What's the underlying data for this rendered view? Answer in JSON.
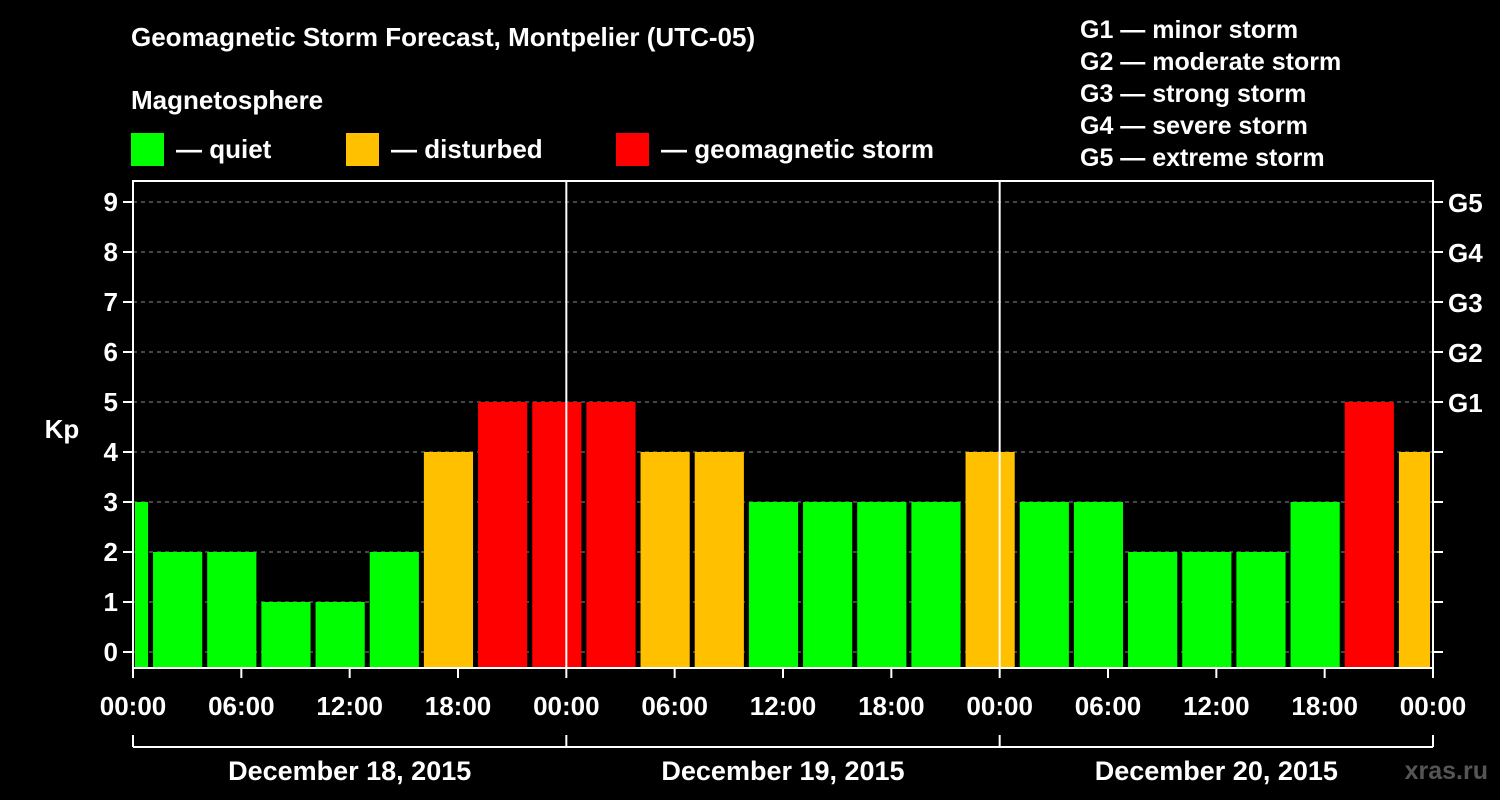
{
  "title": "Geomagnetic Storm Forecast, Montpelier (UTC-05)",
  "subtitle": "Magnetosphere",
  "legend": [
    {
      "label": "— quiet",
      "color": "#00ff00"
    },
    {
      "label": "— disturbed",
      "color": "#ffc000"
    },
    {
      "label": "— geomagnetic storm",
      "color": "#ff0000"
    }
  ],
  "g_scale_legend": [
    "G1 — minor storm",
    "G2 — moderate storm",
    "G3 — strong storm",
    "G4 — severe storm",
    "G5 — extreme storm"
  ],
  "watermark": "xras.ru",
  "colors": {
    "quiet": "#00ff00",
    "disturbed": "#ffc000",
    "storm": "#ff0000",
    "background": "#000000",
    "axis": "#ffffff"
  },
  "chart_data": {
    "type": "bar",
    "ylabel": "Kp",
    "ylim": [
      0,
      9
    ],
    "y_ticks": [
      "0",
      "1",
      "2",
      "3",
      "4",
      "5",
      "6",
      "7",
      "8",
      "9"
    ],
    "right_axis_labels": [
      {
        "kp": 5,
        "label": "G1"
      },
      {
        "kp": 6,
        "label": "G2"
      },
      {
        "kp": 7,
        "label": "G3"
      },
      {
        "kp": 8,
        "label": "G4"
      },
      {
        "kp": 9,
        "label": "G5"
      }
    ],
    "x_tick_labels": [
      "00:00",
      "06:00",
      "12:00",
      "18:00",
      "00:00",
      "06:00",
      "12:00",
      "18:00",
      "00:00",
      "06:00",
      "12:00",
      "18:00",
      "00:00"
    ],
    "x_tick_hours": [
      0,
      6,
      12,
      18,
      24,
      30,
      36,
      42,
      48,
      54,
      60,
      66,
      72
    ],
    "x_range_hours": [
      0,
      72
    ],
    "dates": [
      "December 18, 2015",
      "December 19, 2015",
      "December 20, 2015"
    ],
    "grid": "dashed horizontal at each Kp level",
    "bars": [
      {
        "start_hour": 0,
        "end_hour": 1,
        "kp": 3,
        "level": "quiet"
      },
      {
        "start_hour": 1,
        "end_hour": 4,
        "kp": 2,
        "level": "quiet"
      },
      {
        "start_hour": 4,
        "end_hour": 7,
        "kp": 2,
        "level": "quiet"
      },
      {
        "start_hour": 7,
        "end_hour": 10,
        "kp": 1,
        "level": "quiet"
      },
      {
        "start_hour": 10,
        "end_hour": 13,
        "kp": 1,
        "level": "quiet"
      },
      {
        "start_hour": 13,
        "end_hour": 16,
        "kp": 2,
        "level": "quiet"
      },
      {
        "start_hour": 16,
        "end_hour": 19,
        "kp": 4,
        "level": "disturbed"
      },
      {
        "start_hour": 19,
        "end_hour": 22,
        "kp": 5,
        "level": "storm"
      },
      {
        "start_hour": 22,
        "end_hour": 25,
        "kp": 5,
        "level": "storm"
      },
      {
        "start_hour": 25,
        "end_hour": 28,
        "kp": 5,
        "level": "storm"
      },
      {
        "start_hour": 28,
        "end_hour": 31,
        "kp": 4,
        "level": "disturbed"
      },
      {
        "start_hour": 31,
        "end_hour": 34,
        "kp": 4,
        "level": "disturbed"
      },
      {
        "start_hour": 34,
        "end_hour": 37,
        "kp": 3,
        "level": "quiet"
      },
      {
        "start_hour": 37,
        "end_hour": 40,
        "kp": 3,
        "level": "quiet"
      },
      {
        "start_hour": 40,
        "end_hour": 43,
        "kp": 3,
        "level": "quiet"
      },
      {
        "start_hour": 43,
        "end_hour": 46,
        "kp": 3,
        "level": "quiet"
      },
      {
        "start_hour": 46,
        "end_hour": 49,
        "kp": 4,
        "level": "disturbed"
      },
      {
        "start_hour": 49,
        "end_hour": 52,
        "kp": 3,
        "level": "quiet"
      },
      {
        "start_hour": 52,
        "end_hour": 55,
        "kp": 3,
        "level": "quiet"
      },
      {
        "start_hour": 55,
        "end_hour": 58,
        "kp": 2,
        "level": "quiet"
      },
      {
        "start_hour": 58,
        "end_hour": 61,
        "kp": 2,
        "level": "quiet"
      },
      {
        "start_hour": 61,
        "end_hour": 64,
        "kp": 2,
        "level": "quiet"
      },
      {
        "start_hour": 64,
        "end_hour": 67,
        "kp": 3,
        "level": "quiet"
      },
      {
        "start_hour": 67,
        "end_hour": 70,
        "kp": 5,
        "level": "storm"
      },
      {
        "start_hour": 70,
        "end_hour": 72,
        "kp": 4,
        "level": "disturbed"
      }
    ]
  }
}
